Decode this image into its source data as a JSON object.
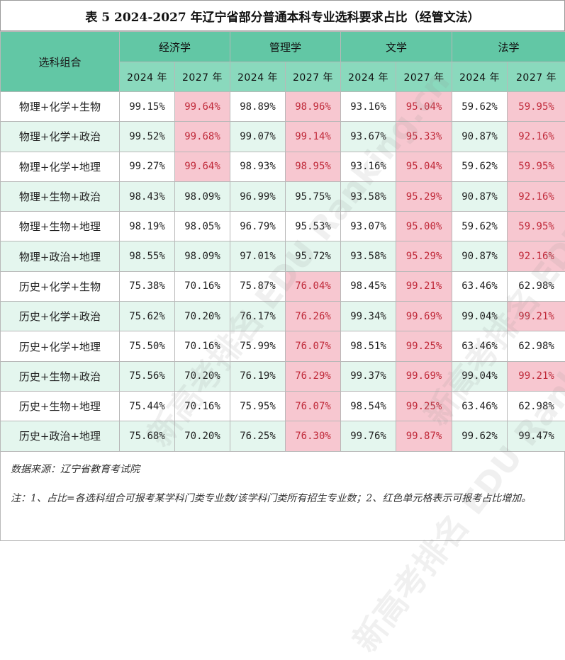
{
  "title": "表 5  2024-2027 年辽宁省部分普通本科专业选科要求占比（经管文法）",
  "header": {
    "corner": "选科组合",
    "groups": [
      "经济学",
      "管理学",
      "文学",
      "法学"
    ],
    "years": [
      "2024 年",
      "2027 年",
      "2024 年",
      "2027 年",
      "2024 年",
      "2027 年",
      "2024 年",
      "2027 年"
    ]
  },
  "rows": [
    {
      "label": "物理+化学+生物",
      "values": [
        "99.15%",
        "99.64%",
        "98.89%",
        "98.96%",
        "93.16%",
        "95.04%",
        "59.62%",
        "59.95%"
      ],
      "red": [
        false,
        true,
        false,
        true,
        false,
        true,
        false,
        true
      ]
    },
    {
      "label": "物理+化学+政治",
      "values": [
        "99.52%",
        "99.68%",
        "99.07%",
        "99.14%",
        "93.67%",
        "95.33%",
        "90.87%",
        "92.16%"
      ],
      "red": [
        false,
        true,
        false,
        true,
        false,
        true,
        false,
        true
      ]
    },
    {
      "label": "物理+化学+地理",
      "values": [
        "99.27%",
        "99.64%",
        "98.93%",
        "98.95%",
        "93.16%",
        "95.04%",
        "59.62%",
        "59.95%"
      ],
      "red": [
        false,
        true,
        false,
        true,
        false,
        true,
        false,
        true
      ]
    },
    {
      "label": "物理+生物+政治",
      "values": [
        "98.43%",
        "98.09%",
        "96.99%",
        "95.75%",
        "93.58%",
        "95.29%",
        "90.87%",
        "92.16%"
      ],
      "red": [
        false,
        false,
        false,
        false,
        false,
        true,
        false,
        true
      ]
    },
    {
      "label": "物理+生物+地理",
      "values": [
        "98.19%",
        "98.05%",
        "96.79%",
        "95.53%",
        "93.07%",
        "95.00%",
        "59.62%",
        "59.95%"
      ],
      "red": [
        false,
        false,
        false,
        false,
        false,
        true,
        false,
        true
      ]
    },
    {
      "label": "物理+政治+地理",
      "values": [
        "98.55%",
        "98.09%",
        "97.01%",
        "95.72%",
        "93.58%",
        "95.29%",
        "90.87%",
        "92.16%"
      ],
      "red": [
        false,
        false,
        false,
        false,
        false,
        true,
        false,
        true
      ]
    },
    {
      "label": "历史+化学+生物",
      "values": [
        "75.38%",
        "70.16%",
        "75.87%",
        "76.04%",
        "98.45%",
        "99.21%",
        "63.46%",
        "62.98%"
      ],
      "red": [
        false,
        false,
        false,
        true,
        false,
        true,
        false,
        false
      ]
    },
    {
      "label": "历史+化学+政治",
      "values": [
        "75.62%",
        "70.20%",
        "76.17%",
        "76.26%",
        "99.34%",
        "99.69%",
        "99.04%",
        "99.21%"
      ],
      "red": [
        false,
        false,
        false,
        true,
        false,
        true,
        false,
        true
      ]
    },
    {
      "label": "历史+化学+地理",
      "values": [
        "75.50%",
        "70.16%",
        "75.99%",
        "76.07%",
        "98.51%",
        "99.25%",
        "63.46%",
        "62.98%"
      ],
      "red": [
        false,
        false,
        false,
        true,
        false,
        true,
        false,
        false
      ]
    },
    {
      "label": "历史+生物+政治",
      "values": [
        "75.56%",
        "70.20%",
        "76.19%",
        "76.29%",
        "99.37%",
        "99.69%",
        "99.04%",
        "99.21%"
      ],
      "red": [
        false,
        false,
        false,
        true,
        false,
        true,
        false,
        true
      ]
    },
    {
      "label": "历史+生物+地理",
      "values": [
        "75.44%",
        "70.16%",
        "75.95%",
        "76.07%",
        "98.54%",
        "99.25%",
        "63.46%",
        "62.98%"
      ],
      "red": [
        false,
        false,
        false,
        true,
        false,
        true,
        false,
        false
      ]
    },
    {
      "label": "历史+政治+地理",
      "values": [
        "75.68%",
        "70.20%",
        "76.25%",
        "76.30%",
        "99.76%",
        "99.87%",
        "99.62%",
        "99.47%"
      ],
      "red": [
        false,
        false,
        false,
        true,
        false,
        true,
        false,
        false
      ]
    }
  ],
  "colors": {
    "header": "#62c7a5",
    "subheader": "#8ad9bd",
    "row_alt": "#e4f6ee",
    "increase_bg": "#f7c7d0",
    "increase_text": "#c02a3a"
  },
  "footer": {
    "source": "数据来源：辽宁省教育考试院",
    "note": "注：1、占比=各选科组合可报考某学科门类专业数/该学科门类所有招生专业数；2、红色单元格表示可报考占比增加。"
  },
  "watermark": "新高考排名 EDU Ranking.cn"
}
